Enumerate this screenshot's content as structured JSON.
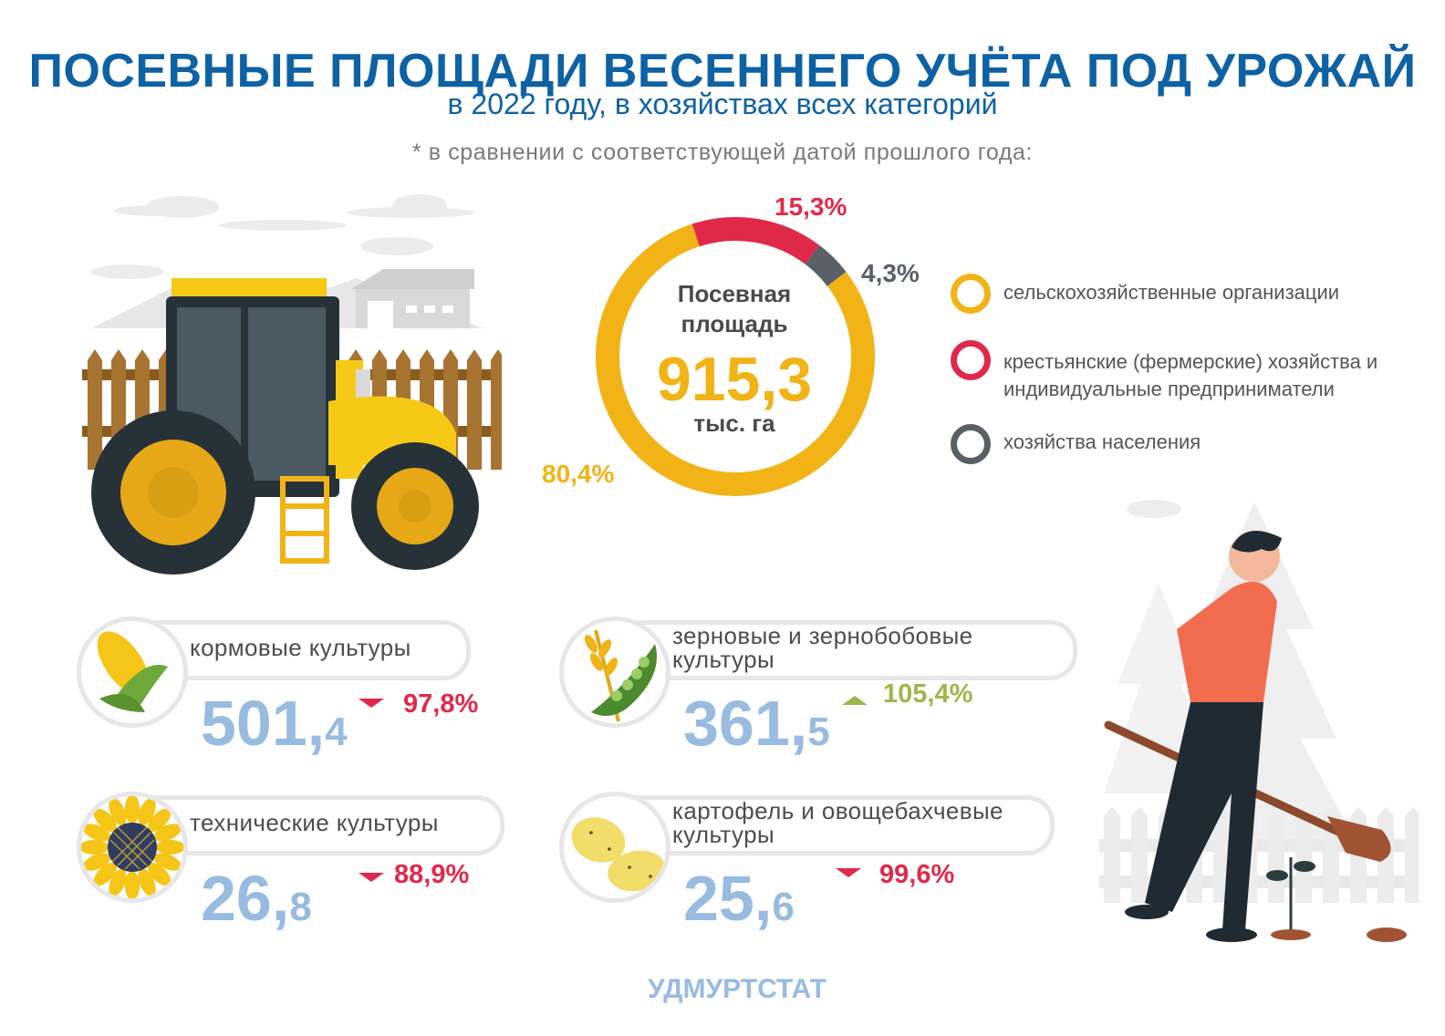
{
  "header": {
    "title": "ПОСЕВНЫЕ ПЛОЩАДИ ВЕСЕННЕГО УЧЁТА ПОД УРОЖАЙ",
    "subtitle": "в 2022 году, в хозяйствах всех категорий",
    "note": "* в сравнении с соответствующей датой прошлого года:"
  },
  "total": {
    "caption": "Посевная площадь",
    "value": "915,3",
    "unit": "тыс. га"
  },
  "legend": [
    {
      "label": "сельскохозяйственные организации",
      "color": "#f2b316"
    },
    {
      "label": "крестьянские (фермерские) хозяйства и индивидуальные предприниматели",
      "color": "#e0294a"
    },
    {
      "label": "хозяйства населения",
      "color": "#5a6068"
    }
  ],
  "chart_data": {
    "type": "pie",
    "variant": "donut",
    "labels": [
      "сельскохозяйственные организации",
      "крестьянские (фермерские) хозяйства и индивидуальные предприниматели",
      "хозяйства населения"
    ],
    "values": [
      80.4,
      15.3,
      4.3
    ],
    "value_labels": [
      "80,4%",
      "15,3%",
      "4,3%"
    ],
    "colors": [
      "#f2b316",
      "#e0294a",
      "#5a6068"
    ]
  },
  "crops": [
    {
      "label": "кормовые культуры",
      "int": "501,",
      "dec": "4",
      "change": "97,8%",
      "direction": "down",
      "icon": "corn-icon"
    },
    {
      "label": "зерновые и зернобобовые культуры",
      "int": "361,",
      "dec": "5",
      "change": "105,4%",
      "direction": "up",
      "icon": "wheat-peas-icon"
    },
    {
      "label": "технические культуры",
      "int": "26,",
      "dec": "8",
      "change": "88,9%",
      "direction": "down",
      "icon": "sunflower-icon"
    },
    {
      "label": "картофель и овощебахчевые культуры",
      "int": "25,",
      "dec": "6",
      "change": "99,6%",
      "direction": "down",
      "icon": "potato-icon"
    }
  ],
  "colors": {
    "title": "#0e62a4",
    "value": "#98bbe0",
    "down": "#e0294a",
    "up": "#9bb84a"
  },
  "footer": "УДМУРТСТАТ"
}
